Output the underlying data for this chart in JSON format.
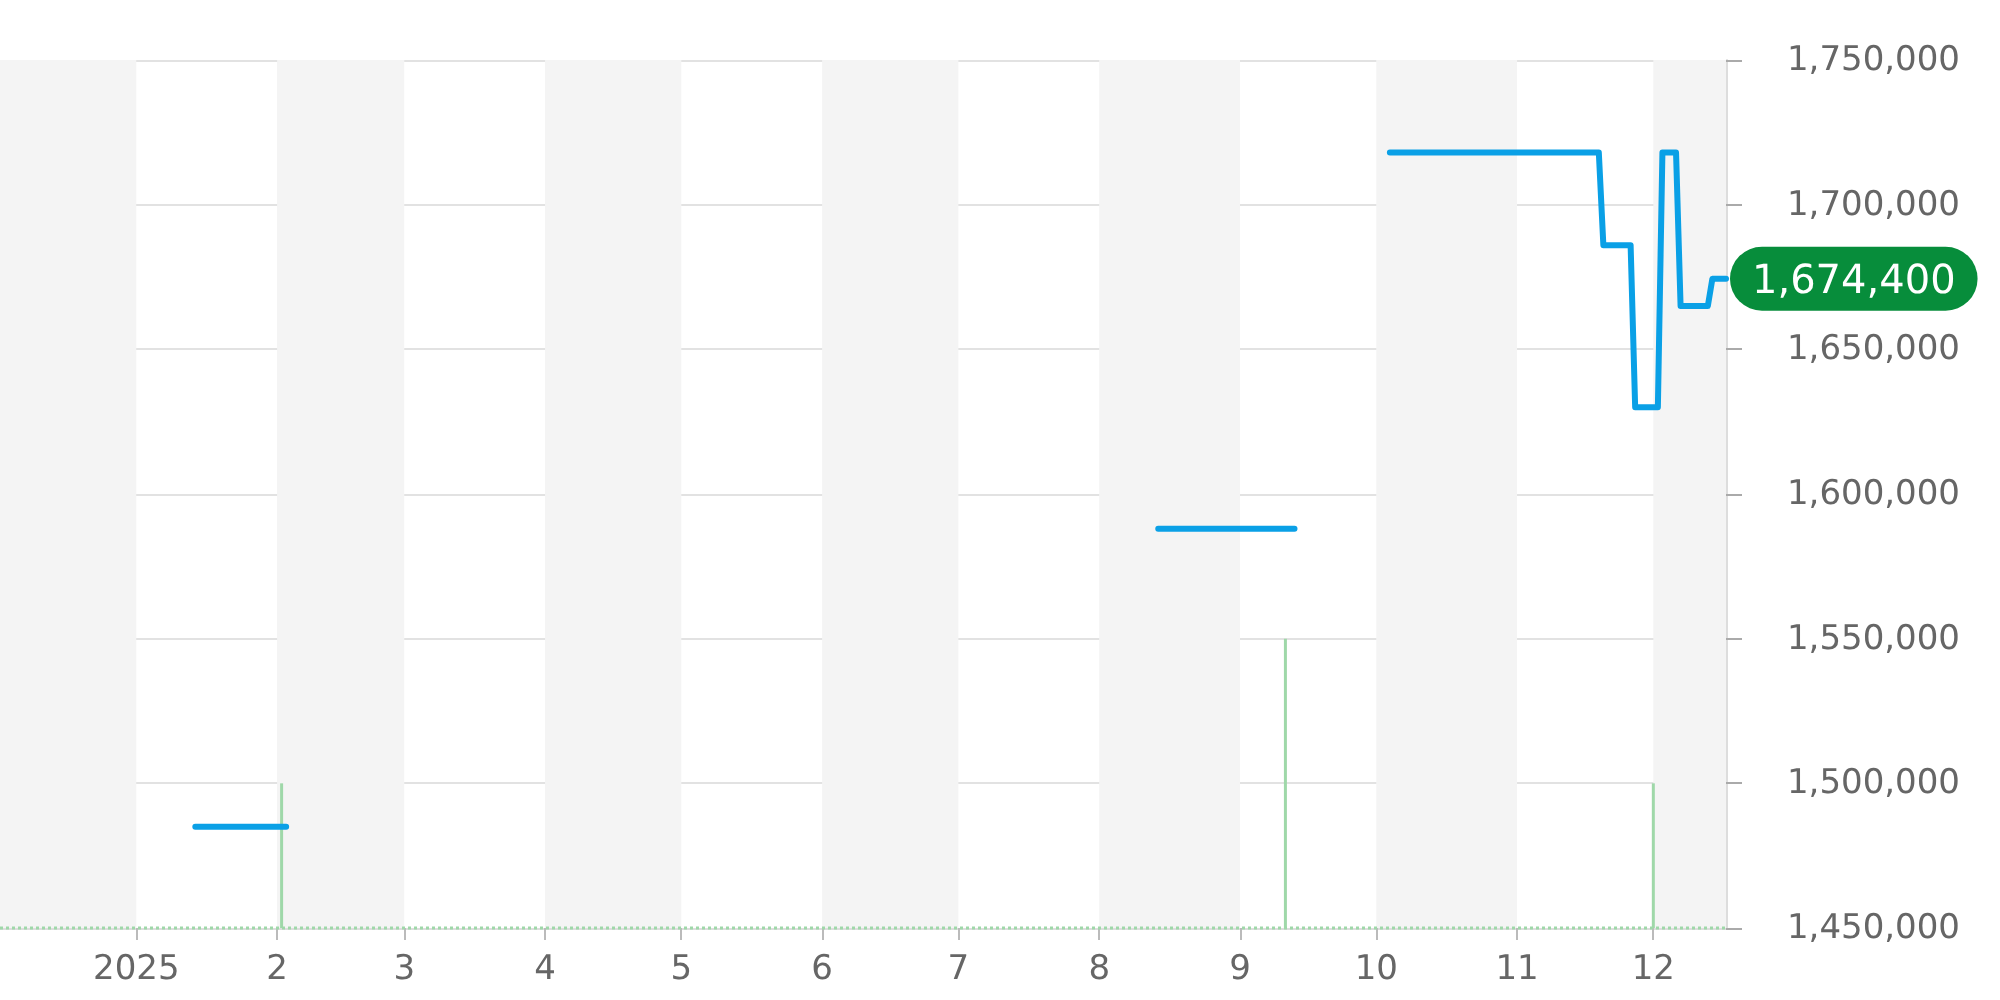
{
  "chart_data": {
    "type": "line",
    "xlim": [
      "2024-12-02",
      "2025-12-17"
    ],
    "xticks": [
      {
        "value": "2025-01-01",
        "label": "2025"
      },
      {
        "value": "2025-02-01",
        "label": "2"
      },
      {
        "value": "2025-03-01",
        "label": "3"
      },
      {
        "value": "2025-04-01",
        "label": "4"
      },
      {
        "value": "2025-05-01",
        "label": "5"
      },
      {
        "value": "2025-06-01",
        "label": "6"
      },
      {
        "value": "2025-07-01",
        "label": "7"
      },
      {
        "value": "2025-08-01",
        "label": "8"
      },
      {
        "value": "2025-09-01",
        "label": "9"
      },
      {
        "value": "2025-10-01",
        "label": "10"
      },
      {
        "value": "2025-11-01",
        "label": "11"
      },
      {
        "value": "2025-12-01",
        "label": "12"
      }
    ],
    "ylim": [
      1450000,
      1750000
    ],
    "yticks": [
      {
        "value": 1450000,
        "label": "1,450,000"
      },
      {
        "value": 1500000,
        "label": "1,500,000"
      },
      {
        "value": 1550000,
        "label": "1,550,000"
      },
      {
        "value": 1600000,
        "label": "1,600,000"
      },
      {
        "value": 1650000,
        "label": "1,650,000"
      },
      {
        "value": 1700000,
        "label": "1,700,000"
      },
      {
        "value": 1750000,
        "label": "1,750,000"
      }
    ],
    "grid": "y",
    "marker": "none",
    "bands": [
      {
        "axis": "x",
        "from": "2024-12-02",
        "to": "2025-01-01",
        "color": "#f4f4f4"
      },
      {
        "axis": "x",
        "from": "2025-02-01",
        "to": "2025-03-01",
        "color": "#f4f4f4"
      },
      {
        "axis": "x",
        "from": "2025-04-01",
        "to": "2025-05-01",
        "color": "#f4f4f4"
      },
      {
        "axis": "x",
        "from": "2025-06-01",
        "to": "2025-07-01",
        "color": "#f4f4f4"
      },
      {
        "axis": "x",
        "from": "2025-08-01",
        "to": "2025-09-01",
        "color": "#f4f4f4"
      },
      {
        "axis": "x",
        "from": "2025-10-01",
        "to": "2025-11-01",
        "color": "#f4f4f4"
      },
      {
        "axis": "x",
        "from": "2025-12-01",
        "to": "2025-12-17",
        "color": "#f4f4f4"
      }
    ],
    "ref_lines": [
      {
        "axis": "y",
        "value": 1450000,
        "color": "#9fd8a9",
        "line_style": "dotted"
      }
    ],
    "series": [
      {
        "color": "#0aa0e6",
        "x": [
          "2025-01-14",
          "2025-02-03",
          "2025-05-01",
          "2025-08-14",
          "2025-09-13",
          "2025-09-25",
          "2025-10-04",
          "2025-11-19",
          "2025-11-20",
          "2025-11-26",
          "2025-11-27",
          "2025-12-02",
          "2025-12-03",
          "2025-12-06",
          "2025-12-07",
          "2025-12-13",
          "2025-12-14",
          "2025-12-17"
        ],
        "values": [
          1485000,
          1485000,
          null,
          1588000,
          1588000,
          null,
          1718000,
          1718000,
          1686000,
          1686000,
          1630000,
          1630000,
          1718000,
          1718000,
          1665000,
          1665000,
          1674400,
          1674400
        ],
        "value_labels": [
          null,
          null,
          null,
          null,
          null,
          null,
          null,
          null,
          null,
          null,
          null,
          null,
          null,
          null,
          null,
          null,
          null,
          "1,674,400"
        ]
      },
      {
        "type": "bar",
        "color": "#9fd8a9",
        "x": [
          "2025-02-02",
          "2025-09-11",
          "2025-12-01"
        ],
        "values": [
          1500000,
          1550000,
          1500000
        ]
      }
    ]
  }
}
